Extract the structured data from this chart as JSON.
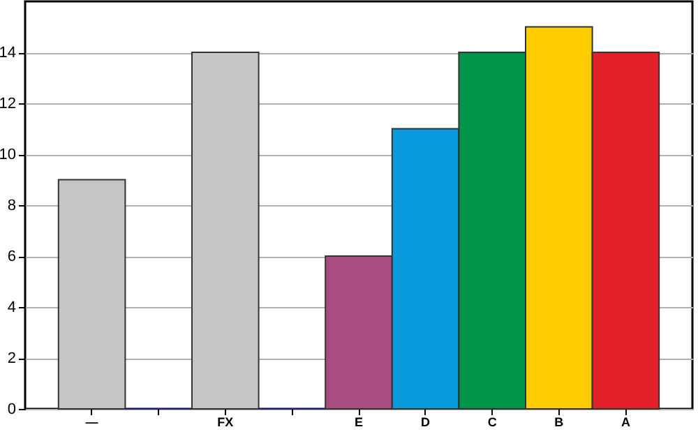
{
  "chart_data": {
    "type": "bar",
    "categories": [
      "—",
      null,
      "FX",
      null,
      "E",
      "D",
      "C",
      "B",
      "A"
    ],
    "values": [
      9,
      0,
      14,
      0,
      6,
      11,
      14,
      15,
      14
    ],
    "colors": [
      "#c4c6c5",
      "#1c1c8a",
      "#c4c6c5",
      "#1c1c8a",
      "#a84c82",
      "#0a9ade",
      "#00954a",
      "#ffcc00",
      "#e2202a"
    ],
    "ylim": [
      0,
      16
    ],
    "yticks": [
      0,
      2,
      4,
      6,
      8,
      10,
      12,
      14
    ],
    "grid": "y"
  }
}
